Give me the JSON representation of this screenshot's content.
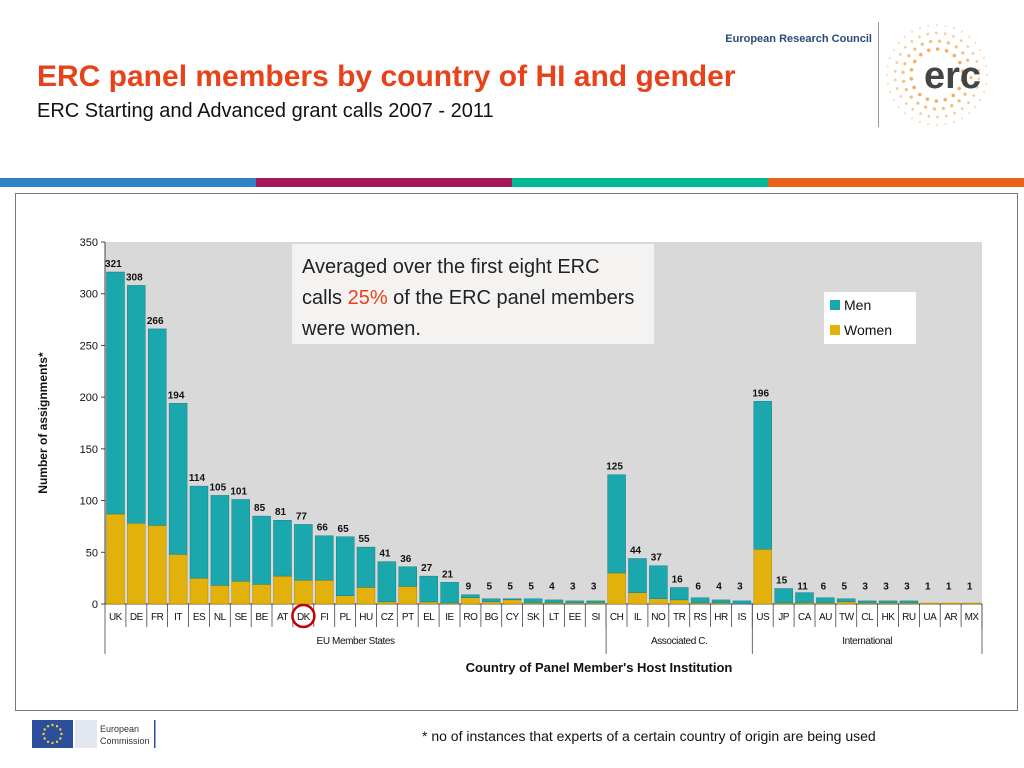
{
  "header": {
    "org_name": "European Research Council",
    "logo_text": "erc",
    "title": "ERC panel members by country of HI and gender",
    "subtitle": "ERC Starting and Advanced grant calls 2007 - 2011"
  },
  "stripes": [
    "#2e84c6",
    "#a3185a",
    "#00b894",
    "#e8641b"
  ],
  "callout": {
    "before": "Averaged over the first eight ERC calls ",
    "highlight": "25%",
    "after": " of the ERC panel members were women."
  },
  "footnote": "* no of instances that experts of a certain country of origin are being used",
  "footer_logo": {
    "line1": "European",
    "line2": "Commission"
  },
  "colors": {
    "men": "#1aa7ad",
    "women": "#e3b10b",
    "plot_bg": "#d9d9d9",
    "highlight_circle": "#c0000a"
  },
  "chart_data": {
    "type": "bar",
    "stacked": true,
    "xlabel": "Country of Panel Member's Host Institution",
    "ylabel": "Number of assignments*",
    "ylim": [
      0,
      350
    ],
    "yticks": [
      0,
      50,
      100,
      150,
      200,
      250,
      300,
      350
    ],
    "grid": false,
    "legend_position": "top-right",
    "categories": [
      "UK",
      "DE",
      "FR",
      "IT",
      "ES",
      "NL",
      "SE",
      "BE",
      "AT",
      "DK",
      "FI",
      "PL",
      "HU",
      "CZ",
      "PT",
      "EL",
      "IE",
      "RO",
      "BG",
      "CY",
      "SK",
      "LT",
      "EE",
      "SI",
      "CH",
      "IL",
      "NO",
      "TR",
      "RS",
      "HR",
      "IS",
      "US",
      "JP",
      "CA",
      "AU",
      "TW",
      "CL",
      "HK",
      "RU",
      "UA",
      "AR",
      "MX"
    ],
    "totals": [
      321,
      308,
      266,
      194,
      114,
      105,
      101,
      85,
      81,
      77,
      66,
      65,
      55,
      41,
      36,
      27,
      21,
      9,
      5,
      5,
      5,
      4,
      3,
      3,
      125,
      44,
      37,
      16,
      6,
      4,
      3,
      196,
      15,
      11,
      6,
      5,
      3,
      3,
      3,
      1,
      1,
      1
    ],
    "series": [
      {
        "name": "Men",
        "values": [
          234,
          230,
          190,
          146,
          89,
          87,
          79,
          66,
          54,
          54,
          43,
          57,
          39,
          39,
          19,
          25,
          20,
          3,
          3,
          1,
          4,
          3,
          2,
          2,
          95,
          33,
          32,
          12,
          5,
          3,
          3,
          143,
          14,
          10,
          5,
          3,
          2,
          2,
          2,
          0,
          0,
          0
        ]
      },
      {
        "name": "Women",
        "values": [
          87,
          78,
          76,
          48,
          25,
          18,
          22,
          19,
          27,
          23,
          23,
          8,
          16,
          2,
          17,
          2,
          1,
          6,
          2,
          4,
          1,
          1,
          1,
          1,
          30,
          11,
          5,
          4,
          1,
          1,
          0,
          53,
          1,
          1,
          1,
          2,
          1,
          1,
          1,
          1,
          1,
          1
        ]
      }
    ],
    "groups": [
      {
        "label": "EU Member States",
        "start": 0,
        "end": 23
      },
      {
        "label": "Associated C.",
        "start": 24,
        "end": 30
      },
      {
        "label": "International",
        "start": 31,
        "end": 41
      }
    ],
    "highlighted_category": "DK"
  }
}
